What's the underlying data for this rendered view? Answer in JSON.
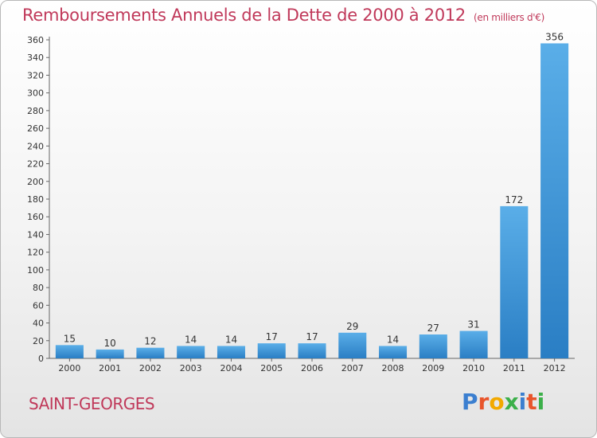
{
  "title": "Remboursements Annuels de la Dette de 2000 à 2012",
  "subtitle": "(en milliers d'€)",
  "place": "SAINT-GEORGES",
  "brand": {
    "letters": [
      "P",
      "r",
      "o",
      "x",
      "i",
      "t",
      "i"
    ],
    "colors": [
      "#3b7fd0",
      "#e8552b",
      "#f2a900",
      "#3cb04a",
      "#3b7fd0",
      "#e8552b",
      "#3cb04a"
    ]
  },
  "colors": {
    "bar_light": "#5aaee8",
    "bar_dark": "#2a7ec4",
    "accent": "#c0395a"
  },
  "chart_data": {
    "type": "bar",
    "categories": [
      "2000",
      "2001",
      "2002",
      "2003",
      "2004",
      "2005",
      "2006",
      "2007",
      "2008",
      "2009",
      "2010",
      "2011",
      "2012"
    ],
    "values": [
      15,
      10,
      12,
      14,
      14,
      17,
      17,
      29,
      14,
      27,
      31,
      172,
      356
    ],
    "title": "Remboursements Annuels de la Dette de 2000 à 2012",
    "subtitle": "(en milliers d'€)",
    "ylim": [
      0,
      360
    ],
    "yticks": [
      0,
      20,
      40,
      60,
      80,
      100,
      120,
      140,
      160,
      180,
      200,
      220,
      240,
      260,
      280,
      300,
      320,
      340,
      360
    ],
    "grid": false,
    "legend": "none"
  }
}
